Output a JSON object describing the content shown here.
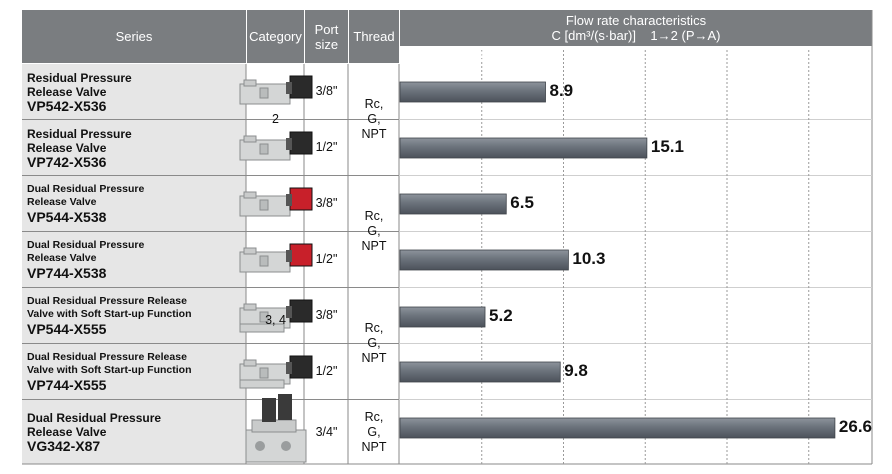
{
  "headers": {
    "series": "Series",
    "category": "Category",
    "port": "Port\nsize",
    "thread": "Thread",
    "flow_title": "Flow rate characteristics",
    "flow_unit": "C [dm³/(s·bar)]    1→2 (P→A)"
  },
  "rows": [
    {
      "series": [
        "Residual Pressure",
        "Release Valve"
      ],
      "model": "VP542-X536",
      "port": "3/8\"",
      "product_icon": "valve-black-coil-icon"
    },
    {
      "series": [
        "Residual Pressure",
        "Release Valve"
      ],
      "model": "VP742-X536",
      "port": "1/2\"",
      "product_icon": "valve-black-coil-icon"
    },
    {
      "series": [
        "Dual Residual Pressure",
        "Release Valve"
      ],
      "model": "VP544-X538",
      "port": "3/8\"",
      "product_icon": "valve-red-coil-icon"
    },
    {
      "series": [
        "Dual Residual Pressure",
        "Release Valve"
      ],
      "model": "VP744-X538",
      "port": "1/2\"",
      "product_icon": "valve-red-coil-icon"
    },
    {
      "series": [
        "Dual Residual Pressure Release",
        "Valve with Soft Start-up Function"
      ],
      "model": "VP544-X555",
      "port": "3/8\"",
      "product_icon": "valve-soft-start-icon"
    },
    {
      "series": [
        "Dual Residual Pressure Release",
        "Valve with Soft Start-up Function"
      ],
      "model": "VP744-X555",
      "port": "1/2\"",
      "product_icon": "valve-soft-start-icon"
    },
    {
      "series": [
        "Dual Residual Pressure",
        "Release Valve"
      ],
      "model": "VG342-X87",
      "port": "3/4\"",
      "product_icon": "valve-large-icon"
    }
  ],
  "categories": [
    "2",
    "3, 4"
  ],
  "threads": "Rc,\nG,\nNPT",
  "chart_data": {
    "type": "bar",
    "orientation": "horizontal",
    "categories": [
      "VP542-X536",
      "VP742-X536",
      "VP544-X538",
      "VP744-X538",
      "VP544-X555",
      "VP744-X555",
      "VG342-X87"
    ],
    "values": [
      8.9,
      15.1,
      6.5,
      10.3,
      5.2,
      9.8,
      26.6
    ],
    "value_labels": [
      "8.9",
      "15.1",
      "6.5",
      "10.3",
      "5.2",
      "9.8",
      "26.6"
    ],
    "ticks": [
      "5",
      "10",
      "15",
      "20",
      "25"
    ],
    "xlim": [
      0,
      28
    ],
    "grid": "dashed-vertical",
    "bar_color": "#6b727b"
  }
}
